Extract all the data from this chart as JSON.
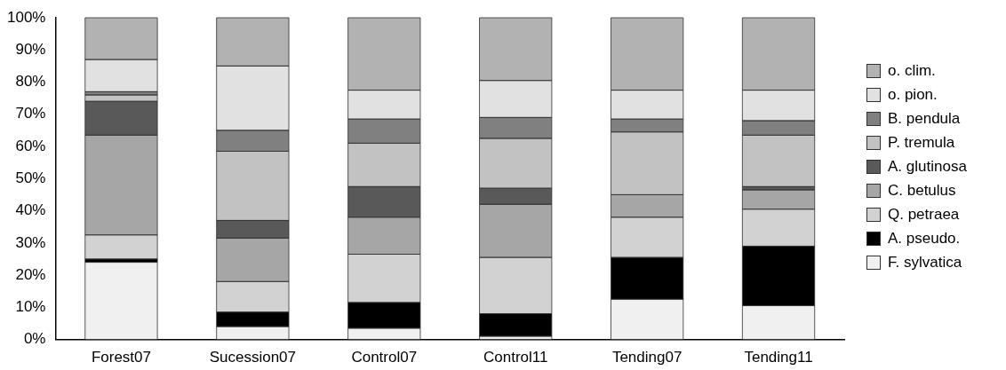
{
  "chart_data": {
    "type": "bar",
    "stacked": true,
    "categories": [
      "Forest07",
      "Sucession07",
      "Control07",
      "Control11",
      "Tending07",
      "Tending11"
    ],
    "ylim": [
      0,
      100
    ],
    "yticks": [
      {
        "value": 0,
        "label": "0%"
      },
      {
        "value": 10,
        "label": "10%"
      },
      {
        "value": 20,
        "label": "20%"
      },
      {
        "value": 30,
        "label": "30%"
      },
      {
        "value": 40,
        "label": "40%"
      },
      {
        "value": 50,
        "label": "50%"
      },
      {
        "value": 60,
        "label": "60%"
      },
      {
        "value": 70,
        "label": "70%"
      },
      {
        "value": 80,
        "label": "80%"
      },
      {
        "value": 90,
        "label": "90%"
      },
      {
        "value": 100,
        "label": "100%"
      }
    ],
    "grid": false,
    "legend": "right",
    "series": [
      {
        "name": "F. sylvatica",
        "color": "#f0f0f0",
        "values": [
          24,
          4,
          3.5,
          1,
          12.5,
          10.5
        ]
      },
      {
        "name": "A. pseudo.",
        "color": "#000000",
        "values": [
          1,
          4.5,
          8,
          7,
          13,
          18.5
        ]
      },
      {
        "name": "Q. petraea",
        "color": "#d2d2d2",
        "values": [
          7.5,
          9.5,
          15,
          17.5,
          12.5,
          11.5
        ]
      },
      {
        "name": "C. betulus",
        "color": "#a6a6a6",
        "values": [
          31,
          13.5,
          11.5,
          16.5,
          7,
          6
        ]
      },
      {
        "name": "A. glutinosa",
        "color": "#595959",
        "values": [
          10.5,
          5.5,
          9.5,
          5,
          0,
          1
        ]
      },
      {
        "name": "P. tremula",
        "color": "#c2c2c2",
        "values": [
          2,
          21.5,
          13.5,
          15.5,
          19.5,
          16
        ]
      },
      {
        "name": "B. pendula",
        "color": "#808080",
        "values": [
          1,
          6.5,
          7.5,
          6.5,
          4,
          4.5
        ]
      },
      {
        "name": "o. pion.",
        "color": "#e1e1e1",
        "values": [
          10,
          20,
          9,
          11.5,
          9,
          9.5
        ]
      },
      {
        "name": "o. clim.",
        "color": "#b2b2b2",
        "values": [
          13,
          15,
          22.5,
          19.5,
          22.5,
          22.5
        ]
      }
    ]
  }
}
